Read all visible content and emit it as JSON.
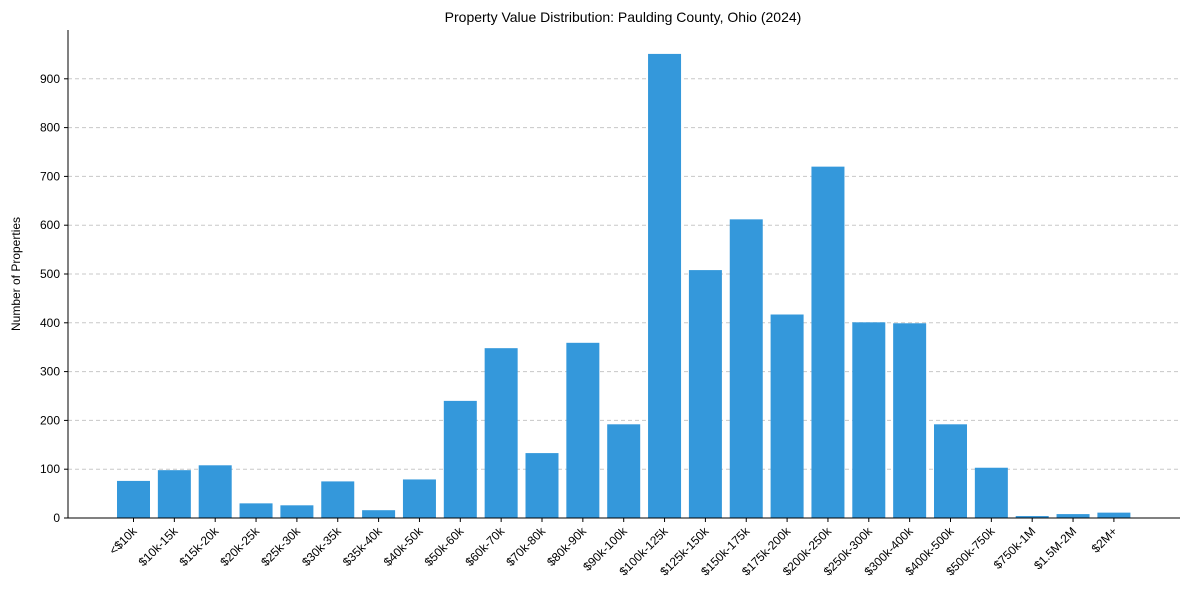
{
  "chart_data": {
    "type": "bar",
    "title": "Property Value Distribution: Paulding County, Ohio (2024)",
    "xlabel": "",
    "ylabel": "Number of Properties",
    "categories": [
      "<$10k",
      "$10k-15k",
      "$15k-20k",
      "$20k-25k",
      "$25k-30k",
      "$30k-35k",
      "$35k-40k",
      "$40k-50k",
      "$50k-60k",
      "$60k-70k",
      "$70k-80k",
      "$80k-90k",
      "$90k-100k",
      "$100k-125k",
      "$125k-150k",
      "$150k-175k",
      "$175k-200k",
      "$200k-250k",
      "$250k-300k",
      "$300k-400k",
      "$400k-500k",
      "$500k-750k",
      "$750k-1M",
      "$1.5M-2M",
      "$2M+"
    ],
    "values": [
      76,
      98,
      108,
      30,
      26,
      75,
      16,
      79,
      240,
      348,
      133,
      359,
      192,
      951,
      508,
      612,
      417,
      720,
      401,
      399,
      192,
      103,
      4,
      8,
      11
    ],
    "ylim": [
      0,
      1000
    ],
    "yticks": [
      0,
      100,
      200,
      300,
      400,
      500,
      600,
      700,
      800,
      900
    ],
    "bar_color": "#3498db",
    "grid": "y-dashed"
  }
}
